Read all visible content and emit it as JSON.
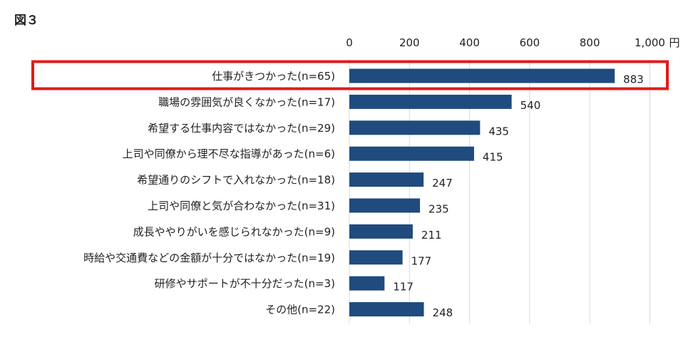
{
  "figure_label": "図３",
  "chart_data": {
    "type": "bar",
    "orientation": "horizontal",
    "unit": "円",
    "xlim": [
      0,
      1000
    ],
    "ticks": [
      {
        "value": 0,
        "label": "0"
      },
      {
        "value": 200,
        "label": "200"
      },
      {
        "value": 400,
        "label": "400"
      },
      {
        "value": 600,
        "label": "600"
      },
      {
        "value": 800,
        "label": "800"
      },
      {
        "value": 1000,
        "label": "1,000"
      }
    ],
    "grid": true,
    "highlight_index": 0,
    "colors": {
      "bar": "#1f4b7f",
      "highlight_box": "#e21b1b",
      "grid": "#d9d9d9"
    },
    "categories": [
      "仕事がきつかった(n=65)",
      "職場の雰囲気が良くなかった(n=17)",
      "希望する仕事内容ではなかった(n=29)",
      "上司や同僚から理不尽な指導があった(n=6)",
      "希望通りのシフトで入れなかった(n=18)",
      "上司や同僚と気が合わなかった(n=31)",
      "成長ややりがいを感じられなかった(n=9)",
      "時給や交通費などの金額が十分ではなかった(n=19)",
      "研修やサポートが不十分だった(n=3)",
      "その他(n=22)"
    ],
    "values": [
      883,
      540,
      435,
      415,
      247,
      235,
      211,
      177,
      117,
      248
    ]
  }
}
